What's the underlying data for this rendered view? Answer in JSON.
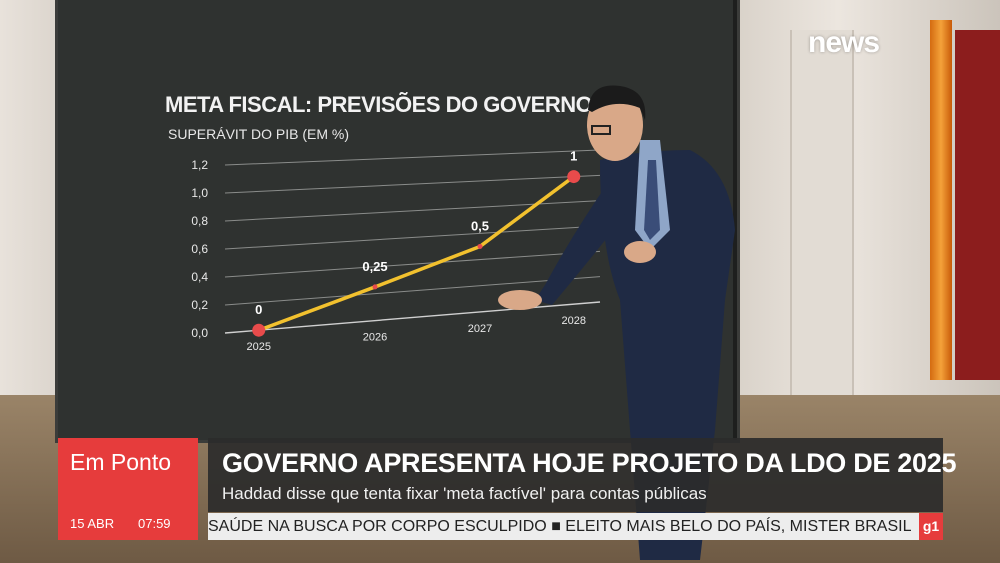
{
  "channel": {
    "logo": "news",
    "logo_mark": "g1"
  },
  "chart_data": {
    "type": "line",
    "title": "META FISCAL: PREVISÕES DO GOVERNO F",
    "subtitle": "SUPERÁVIT DO PIB (EM %)",
    "x": [
      "2025",
      "2026",
      "2027",
      "2028"
    ],
    "values": [
      0,
      0.25,
      0.5,
      1
    ],
    "data_labels": [
      "0",
      "0,25",
      "0,5",
      "1"
    ],
    "y_ticks": [
      "0,0",
      "0,2",
      "0,4",
      "0,6",
      "0,8",
      "1,0",
      "1,2"
    ],
    "ylim": [
      0,
      1.2
    ],
    "grid": true,
    "line_color": "#f2c12e",
    "marker_color": "#e84b4b"
  },
  "lower_third": {
    "program": "Em Ponto",
    "date": "15 ABR",
    "time": "07:59",
    "headline": "GOVERNO APRESENTA HOJE PROJETO DA LDO DE 2025",
    "subheadline": "Haddad disse que tenta fixar 'meta factível' para contas públicas",
    "ticker": "SAÚDE NA BUSCA POR CORPO ESCULPIDO  ■  ELEITO MAIS BELO DO PAÍS, MISTER BRASIL"
  }
}
